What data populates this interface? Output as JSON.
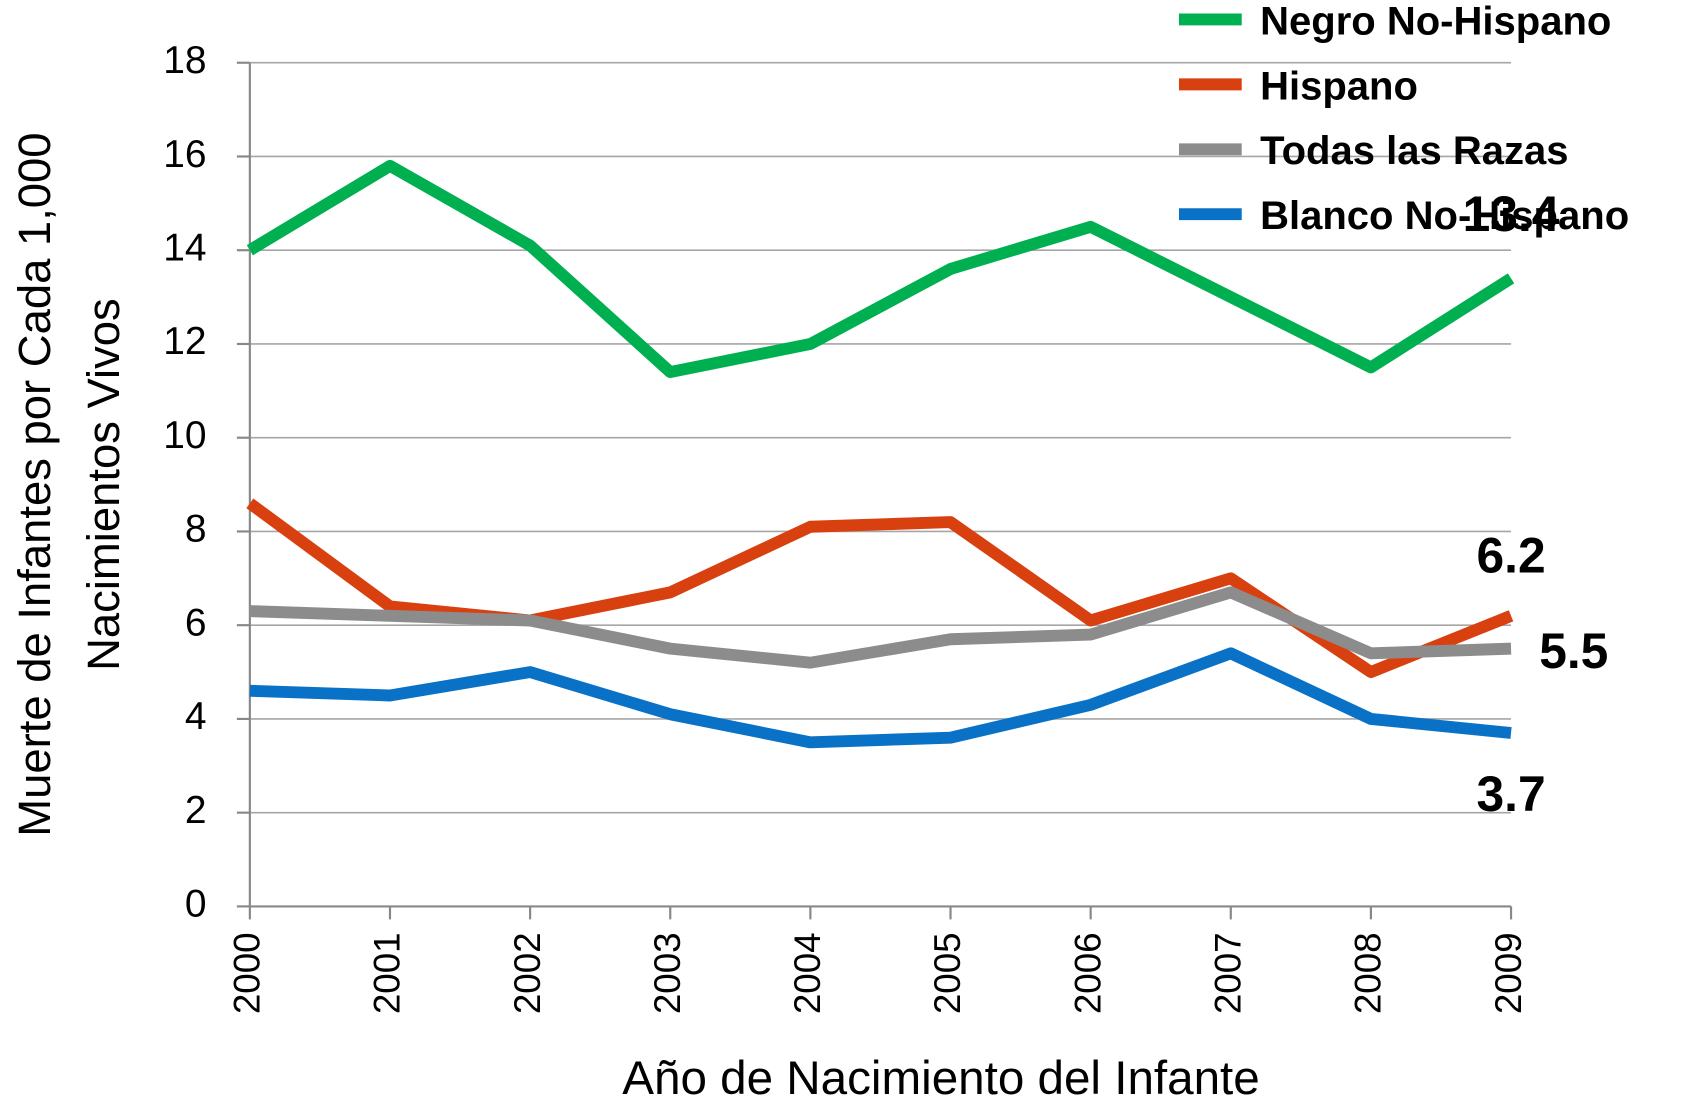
{
  "chart_data": {
    "type": "line",
    "x_label": "Año de Nacimiento del Infante",
    "y_label": [
      "Muerte de Infantes por Cada 1,000",
      "Nacimientos Vivos"
    ],
    "categories": [
      "2000",
      "2001",
      "2002",
      "2003",
      "2004",
      "2005",
      "2006",
      "2007",
      "2008",
      "2009"
    ],
    "series": [
      {
        "name": "Negro No-Hispano",
        "color": "#00b050",
        "label_color": "#00b050",
        "values": [
          14.0,
          15.8,
          14.1,
          11.4,
          12.0,
          13.6,
          14.5,
          13.0,
          11.5,
          13.4
        ]
      },
      {
        "name": "Hispano",
        "color": "#d9400f",
        "label_color": "#c00000",
        "values": [
          8.6,
          6.4,
          6.1,
          6.7,
          8.1,
          8.2,
          6.1,
          7.0,
          5.0,
          6.2
        ]
      },
      {
        "name": "Todas las Razas",
        "color": "#8c8c8c",
        "label_color": "#404040",
        "values": [
          6.3,
          6.2,
          6.1,
          5.5,
          5.2,
          5.7,
          5.8,
          6.7,
          5.4,
          5.5
        ]
      },
      {
        "name": "Blanco No-Hispano",
        "color": "#0a72c6",
        "label_color": "#0a72c6",
        "values": [
          4.6,
          4.5,
          5.0,
          4.1,
          3.5,
          3.6,
          4.3,
          5.4,
          4.0,
          3.7
        ]
      }
    ],
    "label_last": true,
    "ylim": [
      0,
      18
    ],
    "yticks": [
      0,
      2,
      4,
      6,
      8,
      10,
      12,
      14,
      16,
      18
    ],
    "grid": true,
    "legend": "top-right"
  }
}
